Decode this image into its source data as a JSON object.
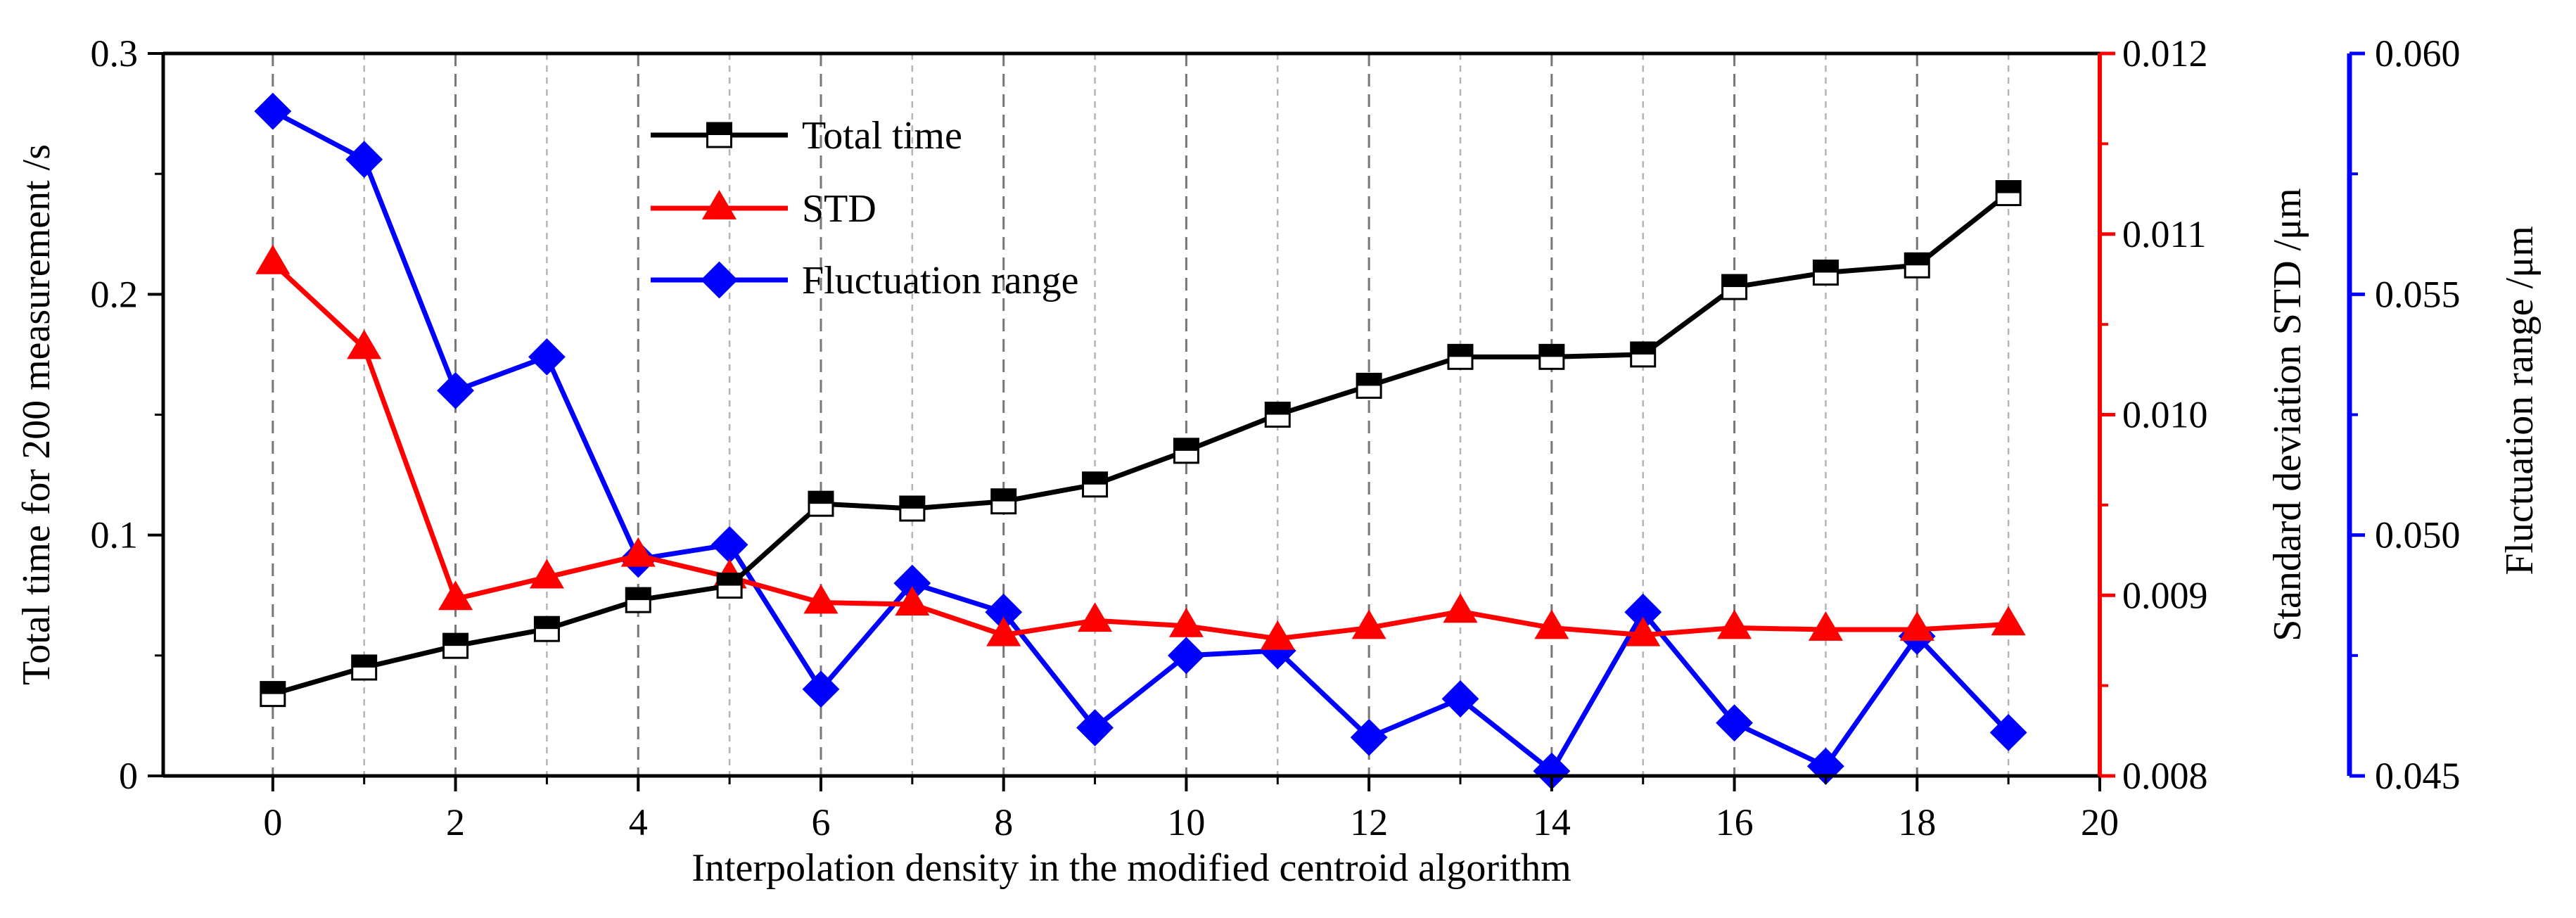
{
  "chart_data": {
    "type": "line",
    "title": "",
    "xlabel": "Interpolation density in the modified centroid algorithm",
    "xlim": [
      -1.2,
      20
    ],
    "xticks": [
      0,
      2,
      4,
      6,
      8,
      10,
      12,
      14,
      16,
      18,
      20
    ],
    "x": [
      0,
      1,
      2,
      3,
      4,
      5,
      6,
      7,
      8,
      9,
      10,
      11,
      12,
      13,
      14,
      15,
      16,
      17,
      18,
      19
    ],
    "axes": {
      "left": {
        "label": "Total time for 200 measurement /s",
        "range": [
          0,
          0.3
        ],
        "ticks": [
          0,
          0.1,
          0.2,
          0.3
        ],
        "tick_labels": [
          "0",
          "0.1",
          "0.2",
          "0.3"
        ],
        "color": "#000000"
      },
      "right1": {
        "label": "Standard deviation STD /μm",
        "range": [
          0.008,
          0.012
        ],
        "ticks": [
          0.008,
          0.009,
          0.01,
          0.011,
          0.012
        ],
        "tick_labels": [
          "0.008",
          "0.009",
          "0.010",
          "0.011",
          "0.012"
        ],
        "color": "#ff0000"
      },
      "right2": {
        "label": "Fluctuation range /μm",
        "range": [
          0.045,
          0.06
        ],
        "ticks": [
          0.045,
          0.05,
          0.055,
          0.06
        ],
        "tick_labels": [
          "0.045",
          "0.050",
          "0.055",
          "0.060"
        ],
        "color": "#0000ff"
      }
    },
    "series": [
      {
        "name": "Total time",
        "axis": "left",
        "color": "#000000",
        "marker": "half-filled-square",
        "values": [
          0.034,
          0.045,
          0.054,
          0.061,
          0.073,
          0.079,
          0.113,
          0.111,
          0.114,
          0.121,
          0.135,
          0.15,
          0.162,
          0.174,
          0.174,
          0.175,
          0.203,
          0.209,
          0.212,
          0.242
        ]
      },
      {
        "name": "STD",
        "axis": "right1",
        "color": "#ff0000",
        "marker": "triangle",
        "values": [
          0.01084,
          0.01037,
          0.00898,
          0.0091,
          0.00922,
          0.0091,
          0.00896,
          0.00895,
          0.00878,
          0.00886,
          0.00883,
          0.00876,
          0.00882,
          0.00891,
          0.00882,
          0.00878,
          0.00882,
          0.00881,
          0.00881,
          0.00884
        ]
      },
      {
        "name": "Fluctuation range",
        "axis": "right2",
        "color": "#0000ff",
        "marker": "diamond",
        "values": [
          0.0588,
          0.0578,
          0.053,
          0.0537,
          0.0495,
          0.0498,
          0.0468,
          0.049,
          0.0484,
          0.046,
          0.0475,
          0.0476,
          0.0458,
          0.0466,
          0.0451,
          0.0484,
          0.0461,
          0.0452,
          0.0479,
          0.0459
        ]
      }
    ],
    "legend": {
      "placement": "top-center-left",
      "entries": [
        "Total time",
        "STD",
        "Fluctuation range"
      ]
    },
    "grid": "vertical-dashed"
  }
}
